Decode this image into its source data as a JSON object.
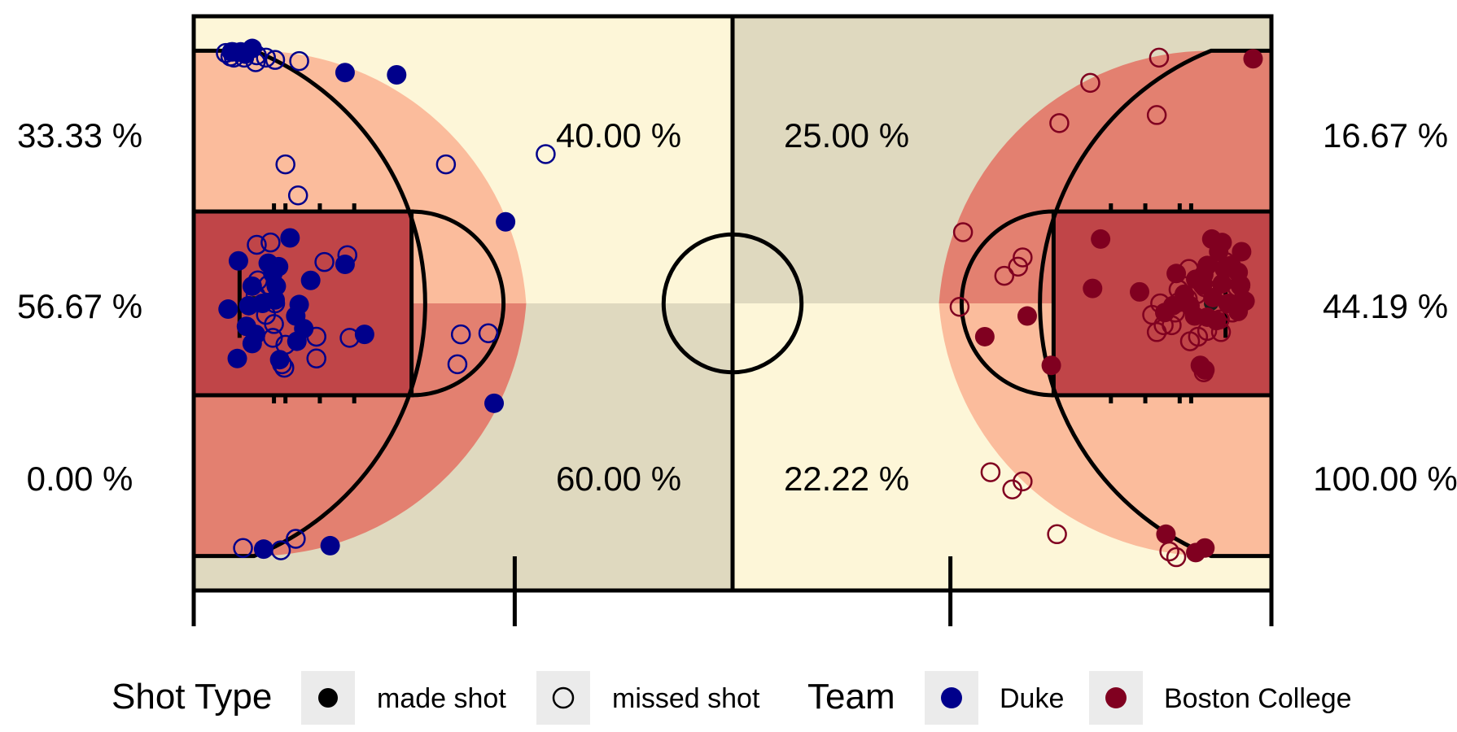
{
  "chart_data": {
    "type": "scatter",
    "title": "",
    "court": {
      "x_range": [
        0,
        94
      ],
      "y_range": [
        0,
        50
      ],
      "zone_colors": {
        "low": "#fdf6d8",
        "mid": "#fbbc9c",
        "mid_dark": "#dfd9bf",
        "high": "#e38070",
        "highest": "#c04548"
      }
    },
    "zones": [
      {
        "id": "left-corner-top",
        "side": "Duke",
        "region": "three-top",
        "pct": "33.33 %",
        "fill": "mid"
      },
      {
        "id": "left-paint",
        "side": "Duke",
        "region": "paint",
        "pct": "56.67 %",
        "fill": "highest"
      },
      {
        "id": "left-corner-bottom",
        "side": "Duke",
        "region": "three-bottom",
        "pct": "0.00 %",
        "fill": "high"
      },
      {
        "id": "left-wing-top",
        "side": "Duke",
        "region": "wing-top",
        "pct": "40.00 %",
        "fill": "low"
      },
      {
        "id": "left-wing-bottom",
        "side": "Duke",
        "region": "wing-bottom",
        "pct": "60.00 %",
        "fill": "mid_dark"
      },
      {
        "id": "right-wing-top",
        "side": "Boston College",
        "region": "wing-top",
        "pct": "25.00 %",
        "fill": "mid_dark"
      },
      {
        "id": "right-wing-bottom",
        "side": "Boston College",
        "region": "wing-bottom",
        "pct": "22.22 %",
        "fill": "low"
      },
      {
        "id": "right-corner-top",
        "side": "Boston College",
        "region": "three-top",
        "pct": "16.67 %",
        "fill": "high"
      },
      {
        "id": "right-paint",
        "side": "Boston College",
        "region": "paint",
        "pct": "44.19 %",
        "fill": "highest"
      },
      {
        "id": "right-corner-bottom",
        "side": "Boston College",
        "region": "three-bottom",
        "pct": "100.00 %",
        "fill": "mid"
      }
    ],
    "legend": {
      "shot_type": {
        "title": "Shot Type",
        "items": [
          {
            "label": "made shot",
            "symbol": "filled"
          },
          {
            "label": "missed shot",
            "symbol": "open"
          }
        ]
      },
      "team": {
        "title": "Team",
        "items": [
          {
            "label": "Duke",
            "color": "#00008b"
          },
          {
            "label": "Boston College",
            "color": "#800020"
          }
        ]
      },
      "placement": "bottom"
    },
    "series": [
      {
        "name": "Duke",
        "color": "#00008b",
        "made": [
          [
            3.3,
            46.9
          ],
          [
            3.4,
            46.9
          ],
          [
            4.1,
            46.9
          ],
          [
            4.5,
            46.7
          ],
          [
            5.1,
            47.2
          ],
          [
            13.2,
            45.1
          ],
          [
            17.7,
            44.9
          ],
          [
            27.2,
            32.1
          ],
          [
            26.2,
            16.3
          ],
          [
            11.9,
            3.9
          ],
          [
            6.1,
            3.6
          ],
          [
            8.4,
            30.7
          ],
          [
            3.9,
            28.7
          ],
          [
            6.5,
            28.5
          ],
          [
            7.4,
            28.2
          ],
          [
            6.9,
            27.6
          ],
          [
            7.2,
            26.5
          ],
          [
            10.2,
            27.0
          ],
          [
            13.2,
            28.4
          ],
          [
            5.1,
            26.5
          ],
          [
            4.8,
            24.8
          ],
          [
            6.0,
            25.0
          ],
          [
            7.1,
            25.3
          ],
          [
            9.2,
            24.9
          ],
          [
            3.0,
            24.5
          ],
          [
            8.9,
            23.9
          ],
          [
            9.6,
            22.8
          ],
          [
            4.6,
            23.0
          ],
          [
            5.4,
            22.3
          ],
          [
            5.1,
            21.5
          ],
          [
            9.0,
            21.7
          ],
          [
            14.9,
            22.3
          ],
          [
            3.8,
            20.2
          ],
          [
            7.5,
            20.1
          ]
        ],
        "missed": [
          [
            2.8,
            46.8
          ],
          [
            3.2,
            46.5
          ],
          [
            3.5,
            46.4
          ],
          [
            4.4,
            46.4
          ],
          [
            5.5,
            46.6
          ],
          [
            6.3,
            46.4
          ],
          [
            7.1,
            46.2
          ],
          [
            5.4,
            46.0
          ],
          [
            9.2,
            46.1
          ],
          [
            8.0,
            37.1
          ],
          [
            22.0,
            37.1
          ],
          [
            30.7,
            38.0
          ],
          [
            9.1,
            34.4
          ],
          [
            5.5,
            30.1
          ],
          [
            6.7,
            30.3
          ],
          [
            13.4,
            29.2
          ],
          [
            11.4,
            28.6
          ],
          [
            5.6,
            27.0
          ],
          [
            6.5,
            26.6
          ],
          [
            5.4,
            25.7
          ],
          [
            7.1,
            25.0
          ],
          [
            6.3,
            24.0
          ],
          [
            7.0,
            23.2
          ],
          [
            6.9,
            22.0
          ],
          [
            8.0,
            21.4
          ],
          [
            10.7,
            22.1
          ],
          [
            13.6,
            22.0
          ],
          [
            23.3,
            22.3
          ],
          [
            25.7,
            22.4
          ],
          [
            7.7,
            19.7
          ],
          [
            7.9,
            19.4
          ],
          [
            10.7,
            20.2
          ],
          [
            23.0,
            19.7
          ],
          [
            4.3,
            3.7
          ],
          [
            7.6,
            3.5
          ],
          [
            8.9,
            4.5
          ]
        ]
      },
      {
        "name": "Boston College",
        "color": "#800020",
        "made": [
          [
            92.4,
            46.3
          ],
          [
            79.1,
            30.6
          ],
          [
            88.8,
            30.6
          ],
          [
            89.7,
            30.3
          ],
          [
            89.4,
            29.5
          ],
          [
            91.4,
            29.5
          ],
          [
            88.4,
            28.3
          ],
          [
            89.9,
            28.0
          ],
          [
            90.5,
            28.3
          ],
          [
            85.7,
            27.6
          ],
          [
            87.4,
            27.1
          ],
          [
            88.1,
            27.5
          ],
          [
            91.1,
            27.7
          ],
          [
            91.3,
            26.5
          ],
          [
            89.7,
            26.7
          ],
          [
            88.0,
            26.6
          ],
          [
            78.4,
            26.3
          ],
          [
            82.5,
            26.0
          ],
          [
            86.4,
            25.8
          ],
          [
            88.9,
            25.5
          ],
          [
            90.2,
            25.0
          ],
          [
            91.7,
            25.2
          ],
          [
            91.1,
            24.3
          ],
          [
            85.4,
            24.8
          ],
          [
            86.9,
            24.8
          ],
          [
            84.7,
            24.2
          ],
          [
            88.4,
            23.8
          ],
          [
            89.2,
            23.5
          ],
          [
            87.3,
            23.9
          ],
          [
            72.7,
            23.9
          ],
          [
            69.0,
            22.1
          ],
          [
            74.8,
            19.6
          ],
          [
            87.8,
            19.6
          ],
          [
            88.2,
            19.2
          ],
          [
            84.8,
            4.9
          ],
          [
            87.4,
            3.3
          ],
          [
            88.2,
            3.7
          ]
        ],
        "missed": [
          [
            84.2,
            46.4
          ],
          [
            78.2,
            44.2
          ],
          [
            84.0,
            41.4
          ],
          [
            75.5,
            40.7
          ],
          [
            67.1,
            31.2
          ],
          [
            72.3,
            29.0
          ],
          [
            71.9,
            28.2
          ],
          [
            70.7,
            27.4
          ],
          [
            90.0,
            28.6
          ],
          [
            86.8,
            28.0
          ],
          [
            89.0,
            27.3
          ],
          [
            91.3,
            26.6
          ],
          [
            88.2,
            26.4
          ],
          [
            85.9,
            26.2
          ],
          [
            91.0,
            26.4
          ],
          [
            86.7,
            25.4
          ],
          [
            87.5,
            25.8
          ],
          [
            84.3,
            25.0
          ],
          [
            85.9,
            25.1
          ],
          [
            83.6,
            24.0
          ],
          [
            85.6,
            24.2
          ],
          [
            90.1,
            25.7
          ],
          [
            90.6,
            24.2
          ],
          [
            89.5,
            23.6
          ],
          [
            84.6,
            23.1
          ],
          [
            85.3,
            23.1
          ],
          [
            88.4,
            22.6
          ],
          [
            89.6,
            22.5
          ],
          [
            87.6,
            22.1
          ],
          [
            86.9,
            21.7
          ],
          [
            84.0,
            22.5
          ],
          [
            66.8,
            24.7
          ],
          [
            88.1,
            19.0
          ],
          [
            69.5,
            10.3
          ],
          [
            71.4,
            8.8
          ],
          [
            72.3,
            9.5
          ],
          [
            75.3,
            4.9
          ],
          [
            85.1,
            3.4
          ],
          [
            85.7,
            2.9
          ]
        ]
      }
    ]
  }
}
